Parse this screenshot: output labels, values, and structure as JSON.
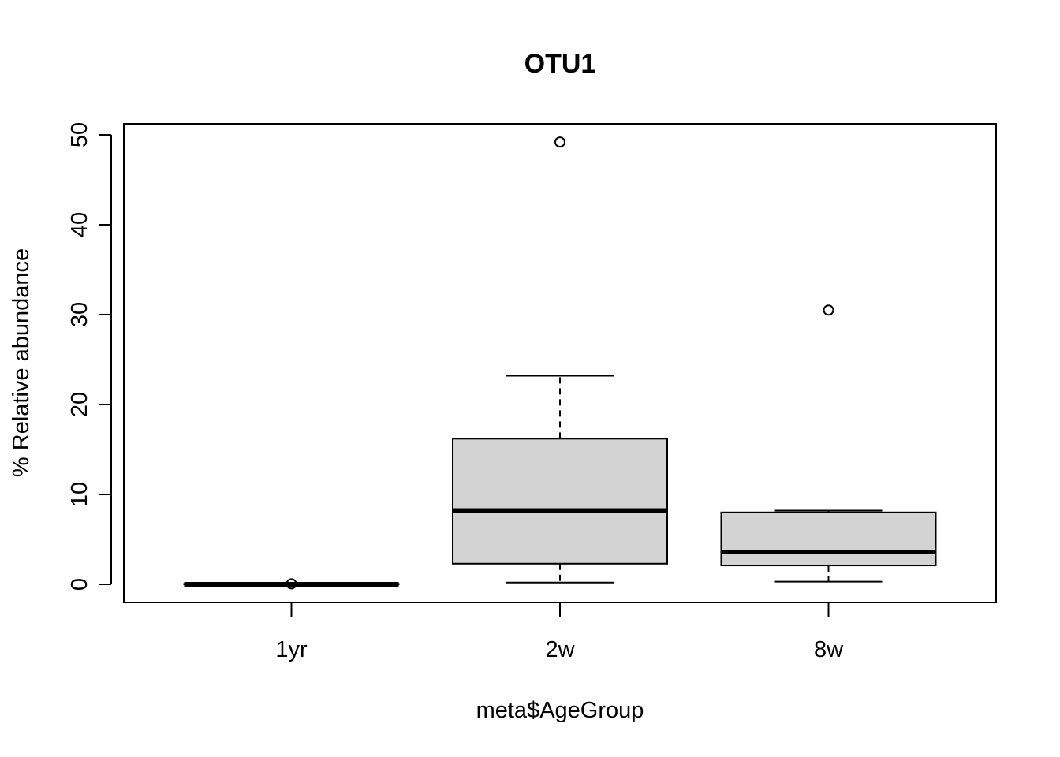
{
  "chart_data": {
    "type": "boxplot",
    "title": "OTU1",
    "xlabel": "meta$AgeGroup",
    "ylabel": "% Relative abundance",
    "categories": [
      "1yr",
      "2w",
      "8w"
    ],
    "ylim": [
      -2,
      51.2
    ],
    "yticks": [
      0,
      10,
      20,
      30,
      40,
      50
    ],
    "grid": false,
    "box_fill": "#d3d3d3",
    "boxes": [
      {
        "category": "1yr",
        "whisker_low": 0.0,
        "q1": 0.0,
        "median": 0.0,
        "q3": 0.05,
        "whisker_high": 0.05,
        "outliers": [
          0.05
        ]
      },
      {
        "category": "2w",
        "whisker_low": 0.2,
        "q1": 2.3,
        "median": 8.2,
        "q3": 16.2,
        "whisker_high": 23.2,
        "outliers": [
          49.2
        ]
      },
      {
        "category": "8w",
        "whisker_low": 0.3,
        "q1": 2.1,
        "median": 3.6,
        "q3": 8.0,
        "whisker_high": 8.2,
        "outliers": [
          30.5
        ]
      }
    ]
  }
}
